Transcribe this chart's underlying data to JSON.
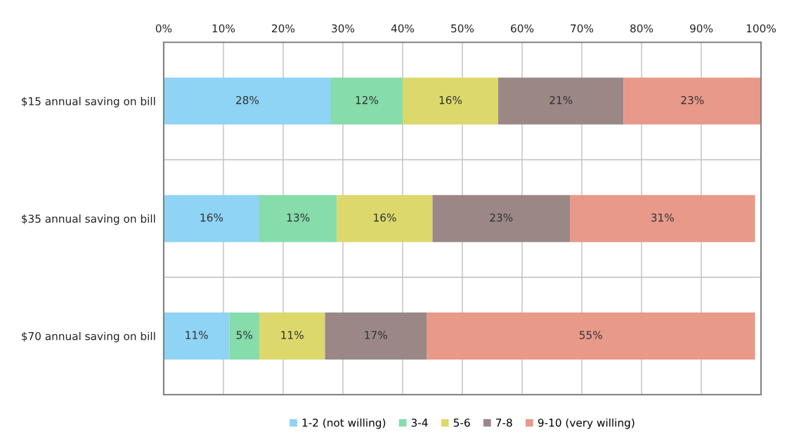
{
  "chart_data": {
    "type": "bar",
    "orientation": "horizontal",
    "stacked": true,
    "grid": true,
    "legend": "bottom",
    "categories": [
      "$15 annual saving on bill",
      "$35 annual saving on bill",
      "$70 annual saving on bill"
    ],
    "series": [
      {
        "name": "1-2 (not willing)",
        "color": "#8fd3f5",
        "values": [
          28,
          16,
          11
        ],
        "value_labels": [
          "28%",
          "16%",
          "11%"
        ]
      },
      {
        "name": "3-4",
        "color": "#86dcab",
        "values": [
          12,
          13,
          5
        ],
        "value_labels": [
          "12%",
          "13%",
          "5%"
        ]
      },
      {
        "name": "5-6",
        "color": "#dcd86c",
        "values": [
          16,
          16,
          11
        ],
        "value_labels": [
          "16%",
          "16%",
          "11%"
        ]
      },
      {
        "name": "7-8",
        "color": "#9c8787",
        "values": [
          21,
          23,
          17
        ],
        "value_labels": [
          "21%",
          "23%",
          "17%"
        ]
      },
      {
        "name": "9-10 (very willing)",
        "color": "#e8998a",
        "values": [
          23,
          31,
          55
        ],
        "value_labels": [
          "23%",
          "31%",
          "55%"
        ]
      }
    ],
    "xlim": [
      0,
      100
    ],
    "xticks": [
      {
        "value": 0,
        "label": "0%"
      },
      {
        "value": 10,
        "label": "10%"
      },
      {
        "value": 20,
        "label": "20%"
      },
      {
        "value": 30,
        "label": "30%"
      },
      {
        "value": 40,
        "label": "40%"
      },
      {
        "value": 50,
        "label": "50%"
      },
      {
        "value": 60,
        "label": "60%"
      },
      {
        "value": 70,
        "label": "70%"
      },
      {
        "value": 80,
        "label": "80%"
      },
      {
        "value": 90,
        "label": "90%"
      },
      {
        "value": 100,
        "label": "100%"
      }
    ]
  }
}
